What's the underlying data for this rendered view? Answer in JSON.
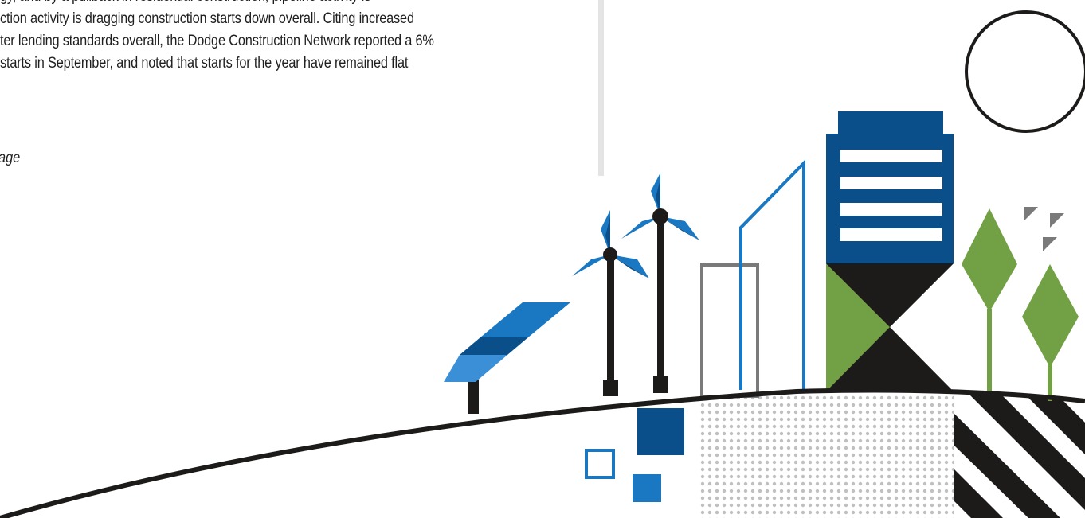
{
  "article": {
    "lines": [
      "gy, and by a pullback in residential construction, pipeline activity is",
      "ction activity is dragging construction starts down overall. Citing increased",
      "ter lending standards overall, the Dodge Construction Network reported a 6%",
      " starts in September, and noted that starts for the year have remained flat"
    ],
    "continued_label": "age"
  },
  "illustration": {
    "colors": {
      "navy": "#0b4f8a",
      "blue": "#1a78c2",
      "light_blue": "#3b8fd6",
      "green": "#72a045",
      "black": "#1d1a1a",
      "gray": "#7a7a7a",
      "dot_gray": "#bfc0c2",
      "divider": "#e4e4e4"
    },
    "icons": [
      "sun-icon",
      "wind-turbine-icon",
      "solar-panel-icon",
      "building-icon",
      "tree-icon"
    ]
  }
}
